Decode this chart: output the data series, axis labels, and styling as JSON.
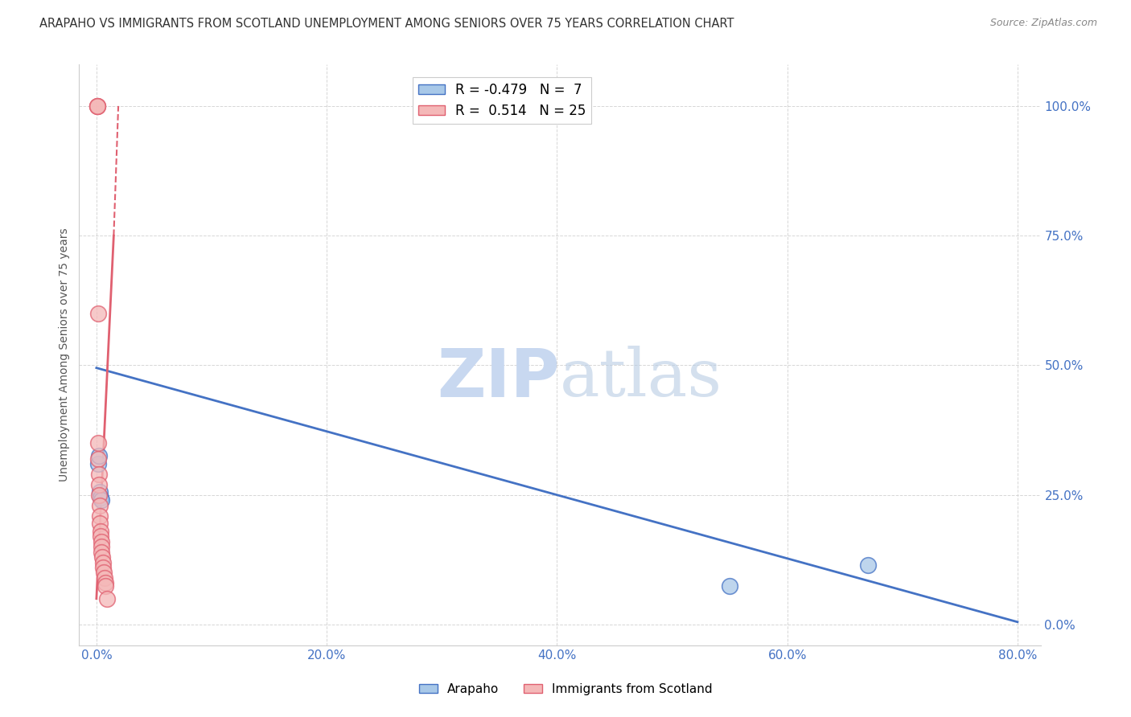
{
  "title": "ARAPAHO VS IMMIGRANTS FROM SCOTLAND UNEMPLOYMENT AMONG SENIORS OVER 75 YEARS CORRELATION CHART",
  "source": "Source: ZipAtlas.com",
  "ylabel": "Unemployment Among Seniors over 75 years",
  "xlabel_vals": [
    0.0,
    20.0,
    40.0,
    60.0,
    80.0
  ],
  "ylabel_vals": [
    0.0,
    25.0,
    50.0,
    75.0,
    100.0
  ],
  "xlim": [
    -1.5,
    82.0
  ],
  "ylim": [
    -4.0,
    108.0
  ],
  "arapaho_color": "#a8c8e8",
  "scotland_color": "#f4b8b8",
  "arapaho_R": -0.479,
  "arapaho_N": 7,
  "scotland_R": 0.514,
  "scotland_N": 25,
  "arapaho_line_color": "#4472c4",
  "scotland_line_color": "#e06070",
  "arapaho_scatter_x": [
    0.15,
    0.25,
    0.3,
    0.35,
    0.4,
    55.0,
    67.0
  ],
  "arapaho_scatter_y": [
    31.0,
    32.5,
    25.5,
    24.5,
    24.0,
    7.5,
    11.5
  ],
  "scotland_scatter_x": [
    0.05,
    0.08,
    0.1,
    0.12,
    0.15,
    0.18,
    0.2,
    0.22,
    0.25,
    0.28,
    0.3,
    0.32,
    0.35,
    0.38,
    0.4,
    0.42,
    0.45,
    0.5,
    0.55,
    0.6,
    0.65,
    0.7,
    0.75,
    0.8,
    0.9
  ],
  "scotland_scatter_y": [
    100.0,
    100.0,
    100.0,
    60.0,
    35.0,
    32.0,
    29.0,
    27.0,
    25.0,
    23.0,
    21.0,
    19.5,
    18.0,
    17.0,
    16.0,
    15.0,
    14.0,
    13.0,
    12.0,
    11.0,
    10.0,
    9.0,
    8.0,
    7.5,
    5.0
  ],
  "arapaho_line_x0": 0.0,
  "arapaho_line_y0": 49.5,
  "arapaho_line_x1": 80.0,
  "arapaho_line_y1": 0.5,
  "scotland_solid_x0": 0.0,
  "scotland_solid_y0": 5.0,
  "scotland_solid_x1": 1.5,
  "scotland_solid_y1": 75.0,
  "scotland_dash_x0": 1.5,
  "scotland_dash_y0": 75.0,
  "scotland_dash_x1": 1.9,
  "scotland_dash_y1": 100.0,
  "watermark_zip": "ZIP",
  "watermark_atlas": "atlas",
  "watermark_color": "#c8d8f0",
  "scatter_size": 200
}
